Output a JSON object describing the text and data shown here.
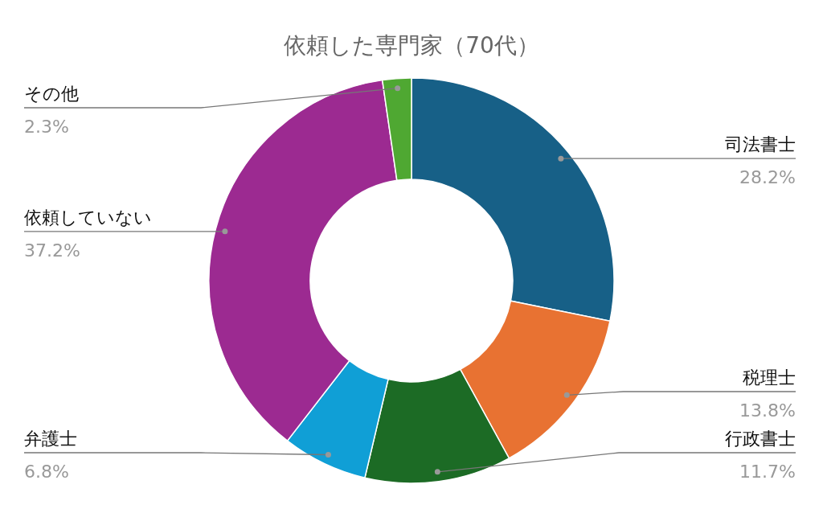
{
  "chart_data": {
    "type": "donut",
    "title": "依頼した専門家（70代）",
    "categories": [
      "司法書士",
      "税理士",
      "行政書士",
      "弁護士",
      "依頼していない",
      "その他"
    ],
    "values": [
      28.2,
      13.8,
      11.7,
      6.8,
      37.2,
      2.3
    ],
    "colors": [
      "#176087",
      "#e87232",
      "#1c6b25",
      "#109fd6",
      "#9c2a91",
      "#4fa832"
    ],
    "value_labels": [
      "28.2%",
      "13.8%",
      "11.7%",
      "6.8%",
      "37.2%",
      "2.3%"
    ]
  }
}
